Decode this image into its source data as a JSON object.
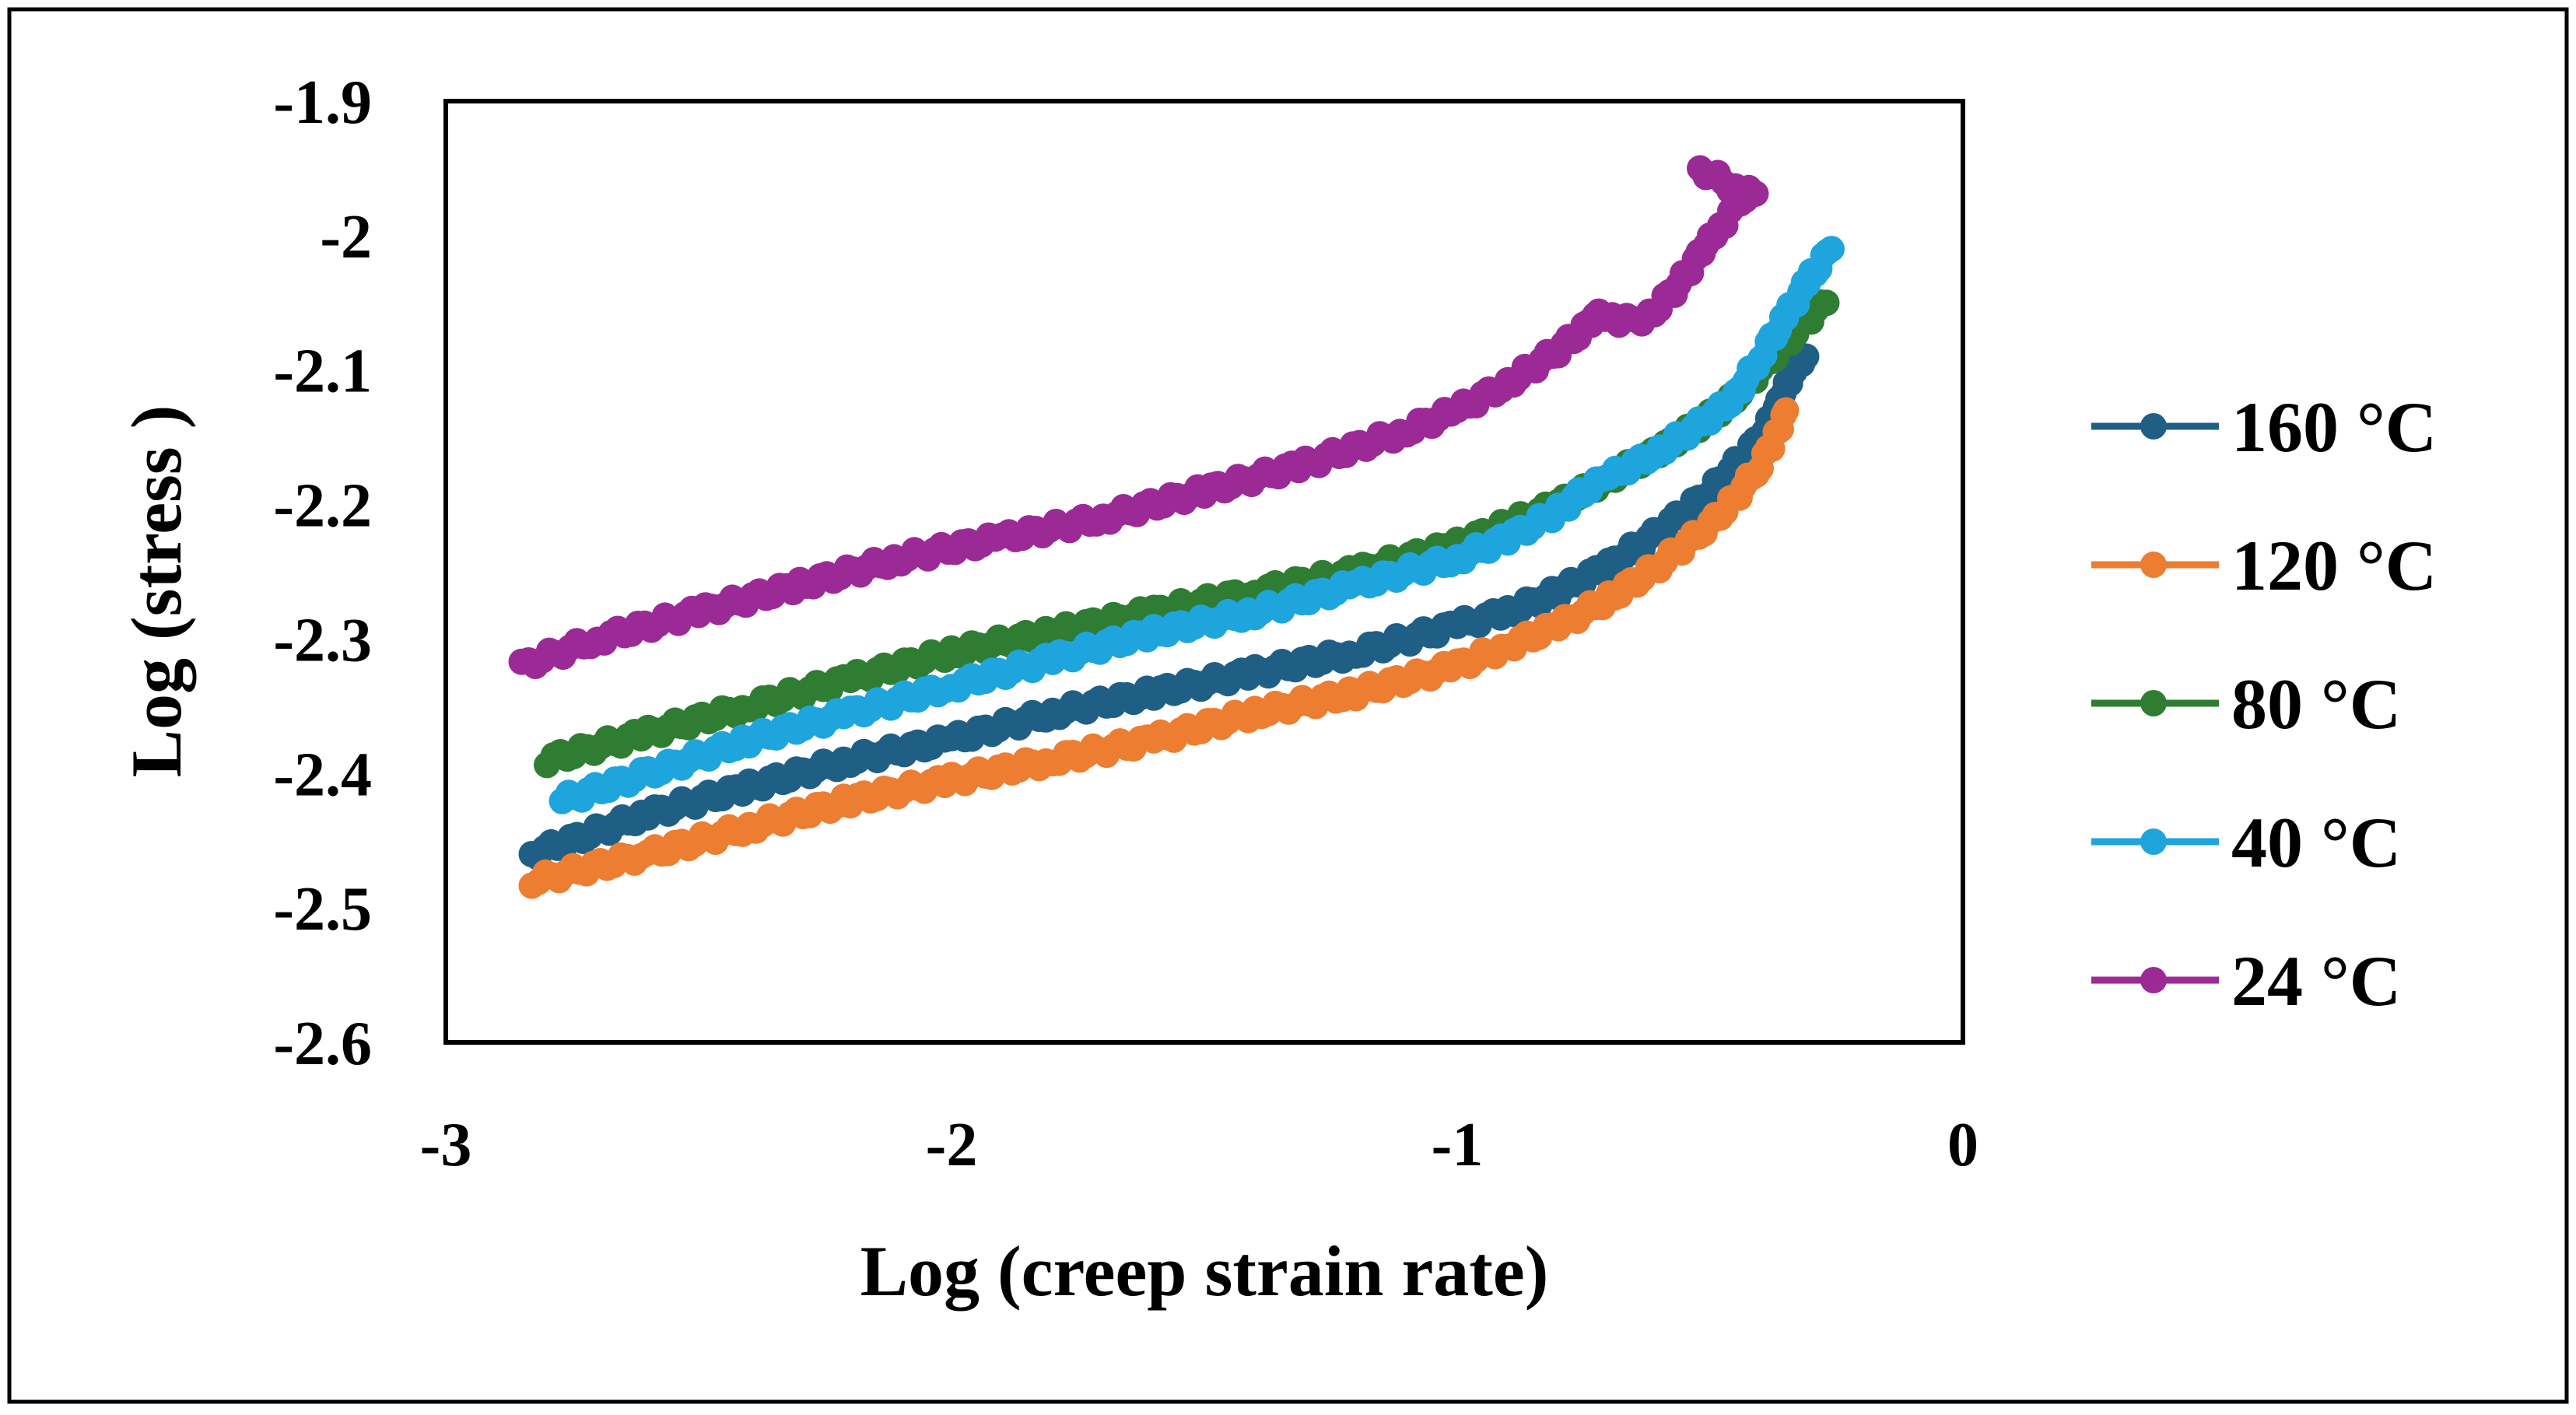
{
  "chart_data": {
    "type": "scatter",
    "title": "",
    "xlabel": "Log (creep strain rate)",
    "ylabel": "Log (stress )",
    "xlim": [
      -3,
      0
    ],
    "ylim": [
      -2.6,
      -1.9
    ],
    "xticks": [
      -3,
      -2,
      -1,
      0
    ],
    "xtick_labels": [
      "-3",
      "-2",
      "-1",
      "0"
    ],
    "yticks": [
      -1.9,
      -2.0,
      -2.1,
      -2.2,
      -2.3,
      -2.4,
      -2.5,
      -2.6
    ],
    "ytick_labels": [
      "-1.9",
      "-2",
      "-2.1",
      "-2.2",
      "-2.3",
      "-2.4",
      "-2.5",
      "-2.6"
    ],
    "grid": false,
    "legend_position": "right",
    "series": [
      {
        "name": "160 °C",
        "color": "#1f5f85",
        "x": [
          -2.83,
          -2.6,
          -2.4,
          -2.2,
          -2.0,
          -1.8,
          -1.6,
          -1.4,
          -1.2,
          -1.0,
          -0.9,
          -0.8,
          -0.7,
          -0.6,
          -0.5,
          -0.45,
          -0.4,
          -0.37,
          -0.35,
          -0.31
        ],
        "y": [
          -2.46,
          -2.43,
          -2.41,
          -2.39,
          -2.375,
          -2.355,
          -2.34,
          -2.325,
          -2.31,
          -2.29,
          -2.28,
          -2.265,
          -2.245,
          -2.22,
          -2.19,
          -2.17,
          -2.15,
          -2.13,
          -2.11,
          -2.09
        ]
      },
      {
        "name": "120 °C",
        "color": "#ed7d31",
        "x": [
          -2.83,
          -2.6,
          -2.4,
          -2.2,
          -2.0,
          -1.8,
          -1.6,
          -1.4,
          -1.2,
          -1.0,
          -0.9,
          -0.8,
          -0.7,
          -0.6,
          -0.5,
          -0.45,
          -0.4,
          -0.37,
          -0.35
        ],
        "y": [
          -2.48,
          -2.46,
          -2.44,
          -2.42,
          -2.405,
          -2.39,
          -2.375,
          -2.355,
          -2.34,
          -2.32,
          -2.305,
          -2.29,
          -2.27,
          -2.245,
          -2.215,
          -2.195,
          -2.17,
          -2.15,
          -2.13
        ]
      },
      {
        "name": "80 °C",
        "color": "#2e7d32",
        "x": [
          -2.8,
          -2.6,
          -2.4,
          -2.2,
          -2.0,
          -1.8,
          -1.6,
          -1.4,
          -1.2,
          -1.0,
          -0.9,
          -0.8,
          -0.7,
          -0.6,
          -0.5,
          -0.45,
          -0.4,
          -0.35,
          -0.3,
          -0.27
        ],
        "y": [
          -2.39,
          -2.37,
          -2.35,
          -2.33,
          -2.31,
          -2.295,
          -2.28,
          -2.265,
          -2.25,
          -2.23,
          -2.215,
          -2.2,
          -2.18,
          -2.16,
          -2.135,
          -2.12,
          -2.1,
          -2.08,
          -2.06,
          -2.05
        ]
      },
      {
        "name": "40 °C",
        "color": "#1ea5de",
        "x": [
          -2.77,
          -2.6,
          -2.4,
          -2.2,
          -2.0,
          -1.8,
          -1.6,
          -1.4,
          -1.2,
          -1.0,
          -0.9,
          -0.8,
          -0.75,
          -0.7,
          -0.6,
          -0.5,
          -0.45,
          -0.4,
          -0.35,
          -0.3,
          -0.26
        ],
        "y": [
          -2.42,
          -2.4,
          -2.375,
          -2.355,
          -2.335,
          -2.315,
          -2.295,
          -2.28,
          -2.26,
          -2.24,
          -2.225,
          -2.205,
          -2.19,
          -2.18,
          -2.16,
          -2.135,
          -2.12,
          -2.09,
          -2.06,
          -2.03,
          -2.01
        ]
      },
      {
        "name": "24 °C",
        "color": "#9c2a96",
        "x": [
          -2.85,
          -2.7,
          -2.5,
          -2.3,
          -2.1,
          -1.9,
          -1.7,
          -1.5,
          -1.3,
          -1.1,
          -1.0,
          -0.9,
          -0.8,
          -0.75,
          -0.72,
          -0.68,
          -0.62,
          -0.57,
          -0.53,
          -0.5,
          -0.47,
          -0.45,
          -0.43,
          -0.41,
          -0.45,
          -0.52
        ],
        "y": [
          -2.32,
          -2.3,
          -2.28,
          -2.26,
          -2.24,
          -2.225,
          -2.21,
          -2.19,
          -2.17,
          -2.145,
          -2.13,
          -2.11,
          -2.085,
          -2.07,
          -2.055,
          -2.065,
          -2.06,
          -2.04,
          -2.02,
          -2.0,
          -1.99,
          -1.98,
          -1.97,
          -1.97,
          -1.965,
          -1.95
        ]
      }
    ]
  }
}
